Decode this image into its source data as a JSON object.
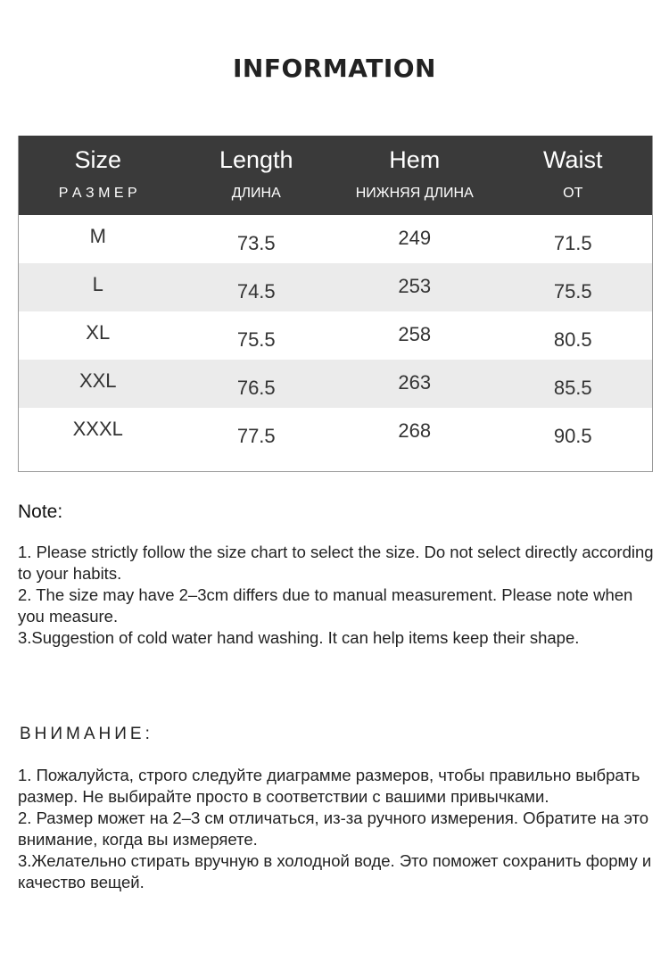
{
  "title": "INFORMATION",
  "table": {
    "headers": [
      {
        "en": "Size",
        "ru": "Р А З М Е Р"
      },
      {
        "en": "Length",
        "ru": "ДЛИНА"
      },
      {
        "en": "Hem",
        "ru": "НИЖНЯЯ ДЛИНА"
      },
      {
        "en": "Waist",
        "ru": "ОТ"
      }
    ],
    "rows": [
      [
        "M",
        "73.5",
        "249",
        "71.5"
      ],
      [
        "L",
        "74.5",
        "253",
        "75.5"
      ],
      [
        "XL",
        "75.5",
        "258",
        "80.5"
      ],
      [
        "XXL",
        "76.5",
        "263",
        "85.5"
      ],
      [
        "XXXL",
        "77.5",
        "268",
        "90.5"
      ]
    ],
    "colors": {
      "header_bg": "#3a3a3a",
      "alt_row": "#ebebeb"
    }
  },
  "note": {
    "heading": "Note:",
    "lines": [
      "1. Please strictly follow the size chart  to select the size. Do not select directly according to your habits.",
      "2. The size may have 2–3cm differs due to manual measurement. Please note when you measure.",
      "3.Suggestion of cold water hand washing. It can help items keep their shape."
    ]
  },
  "ru_note": {
    "heading": "ВНИМАНИЕ:",
    "lines": [
      "1. Пожалуйста, строго следуйте диаграмме размеров, чтобы правильно выбрать размер. Не выбирайте просто в соответствии с вашими привычками.",
      "2. Размер может на 2–3 см отличаться, из-за ручного измерения. Обратите на это внимание, когда вы измеряете.",
      "3.Желательно стирать вручную в холодной воде. Это поможет сохранить форму и качество вещей."
    ]
  }
}
